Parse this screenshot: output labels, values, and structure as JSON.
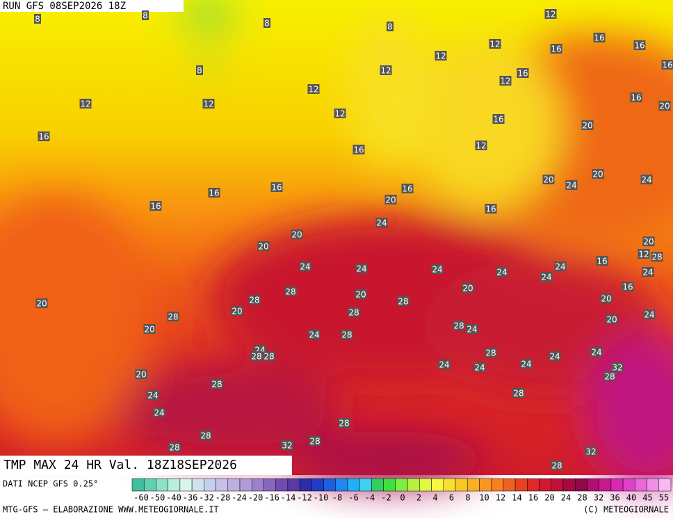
{
  "header": {
    "run": "RUN GFS 08SEP2026 18Z"
  },
  "map": {
    "title": "TMP MAX 24 HR Val. 18Z18SEP2026",
    "labels": [
      8,
      8,
      8,
      8,
      8,
      12,
      12,
      12,
      12,
      12,
      12,
      12,
      12,
      12,
      12,
      16,
      16,
      16,
      16,
      16,
      16,
      16,
      16,
      16,
      16,
      16,
      16,
      16,
      16,
      20,
      20,
      20,
      20,
      20,
      20,
      20,
      24,
      24,
      24,
      20,
      12,
      28,
      16,
      24,
      24,
      24,
      24,
      24,
      24,
      24,
      16,
      20,
      28,
      20,
      28,
      20,
      28,
      20,
      20,
      20,
      24,
      28,
      28,
      28,
      24,
      20,
      24,
      28,
      24,
      28,
      28,
      28,
      24,
      24,
      24,
      24,
      24,
      32,
      28,
      20,
      28,
      24,
      28,
      24,
      28,
      28,
      28,
      32,
      28,
      32,
      28
    ]
  },
  "colorbar": {
    "source": "DATI NCEP GFS 0.25°",
    "labels": [
      "-60",
      "-50",
      "-40",
      "-36",
      "-32",
      "-28",
      "-24",
      "-20",
      "-16",
      "-14",
      "-12",
      "-10",
      "-8",
      "-6",
      "-4",
      "-2",
      "0",
      "2",
      "4",
      "6",
      "8",
      "10",
      "12",
      "14",
      "16",
      "20",
      "24",
      "28",
      "32",
      "36",
      "40",
      "45",
      "55"
    ],
    "colors": [
      "#3fbf9f",
      "#5fd0b0",
      "#8fe0c8",
      "#b8eedc",
      "#d8f4ee",
      "#cfe3ee",
      "#c6d0ec",
      "#c8c0e8",
      "#bfaee0",
      "#b09ad8",
      "#9c80cc",
      "#8a66c0",
      "#6f4cb0",
      "#5a3aa0",
      "#2c2ca8",
      "#1e3ec8",
      "#1c5ee0",
      "#2088f0",
      "#20b0f8",
      "#40d0f0",
      "#30d060",
      "#40e040",
      "#80f040",
      "#b8f040",
      "#e0f840",
      "#f8f840",
      "#f8e030",
      "#f8c820",
      "#f8b020",
      "#f89820",
      "#f88020",
      "#f06020",
      "#e84020",
      "#e02828",
      "#d01830",
      "#c01038",
      "#a80840",
      "#900848",
      "#b01070",
      "#c81890",
      "#d828b0",
      "#e040c8",
      "#e868d8",
      "#f090e8",
      "#f8b8f4"
    ]
  },
  "footer": {
    "left": "MTG-GFS — ELABORAZIONE WWW.METEOGIORNALE.IT",
    "right": "(C) METEOGIORNALE"
  }
}
